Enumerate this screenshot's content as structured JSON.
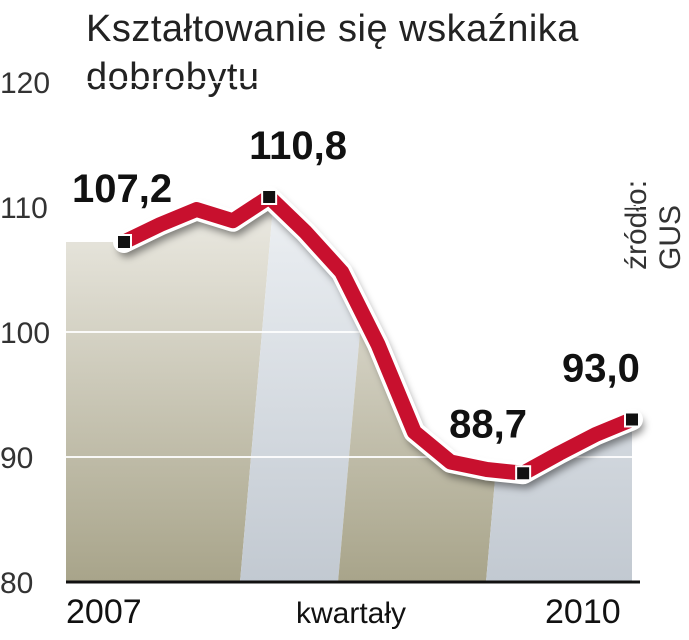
{
  "title_lines": [
    "Kształtowanie się wskaźnika",
    "dobrobytu"
  ],
  "source": "źródło: GUS",
  "chart_data": {
    "type": "line",
    "title": "Kształtowanie się wskaźnika dobrobytu",
    "xlabel": "kwartały",
    "ylabel": "",
    "ylim": [
      80,
      120
    ],
    "yticks": [
      80,
      90,
      100,
      110,
      120
    ],
    "x_labels": [
      "2007",
      "2010"
    ],
    "grid": true,
    "values": [
      107.2,
      108.6,
      109.8,
      108.9,
      110.8,
      108.0,
      104.8,
      99.0,
      92.0,
      89.6,
      89.0,
      88.7,
      90.3,
      91.8,
      93.0
    ],
    "data_labels": [
      {
        "index": 0,
        "text": "107,2"
      },
      {
        "index": 4,
        "text": "110,8"
      },
      {
        "index": 11,
        "text": "88,7"
      },
      {
        "index": 14,
        "text": "93,0"
      }
    ],
    "colors": {
      "line": "#c8102e",
      "marker": "#111111",
      "band_dark": "#aca890",
      "band_light": "#c6cdd4"
    }
  }
}
